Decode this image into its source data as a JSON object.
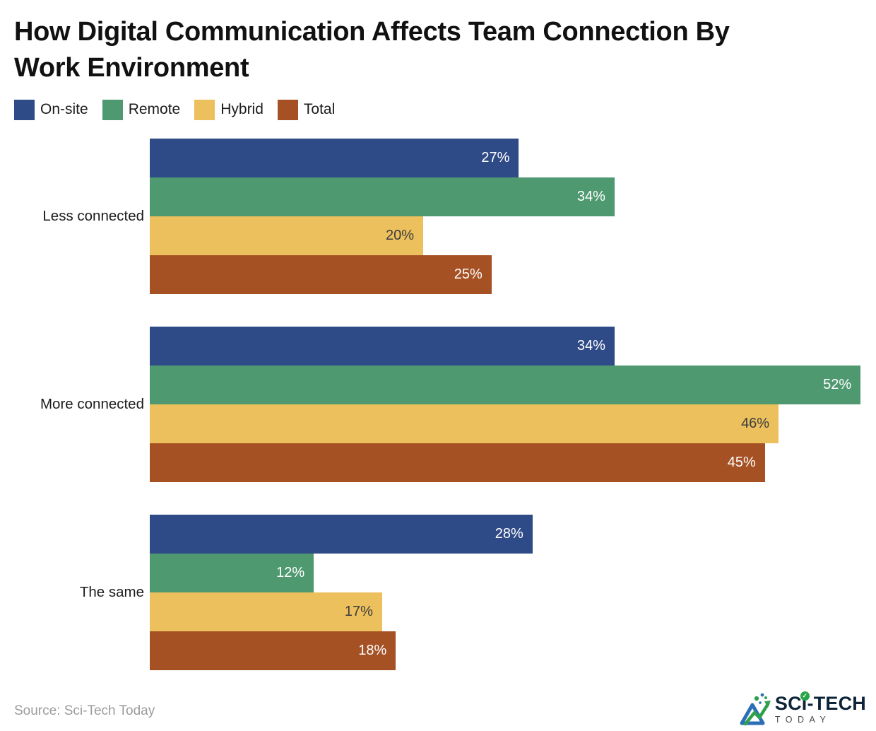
{
  "page": {
    "title_line1": "How Digital Communication Affects Team Connection By",
    "title_line2": "Work Environment"
  },
  "chart_data": {
    "type": "bar",
    "orientation": "horizontal",
    "title": "How Digital Communication Affects Team Connection By Work Environment",
    "categories": [
      "Less connected",
      "More connected",
      "The same"
    ],
    "series": [
      {
        "name": "On-site",
        "color": "#2F4B87",
        "label_color": "#FFFFFF",
        "values": [
          27,
          34,
          28
        ]
      },
      {
        "name": "Remote",
        "color": "#4F9971",
        "label_color": "#FFFFFF",
        "values": [
          34,
          52,
          12
        ]
      },
      {
        "name": "Hybrid",
        "color": "#ECC05C",
        "label_color": "#3D3D3D",
        "values": [
          20,
          46,
          17
        ]
      },
      {
        "name": "Total",
        "color": "#A55123",
        "label_color": "#FFFFFF",
        "values": [
          25,
          45,
          18
        ]
      }
    ],
    "value_suffix": "%",
    "xlim": [
      0,
      53
    ],
    "grid": false,
    "legend_position": "top",
    "axis_labels_visible": false
  },
  "footer": {
    "source": "Source: Sci-Tech Today",
    "logo": {
      "line1": "SCI-TECH",
      "line2": "TODAY",
      "check_glyph": "✓",
      "navy": "#0e2438",
      "green": "#27a348",
      "blue": "#2d6fb7"
    }
  }
}
